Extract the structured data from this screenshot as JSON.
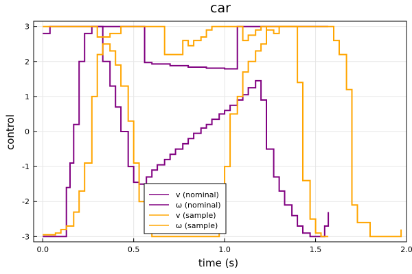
{
  "chart_data": {
    "type": "line",
    "title": "car",
    "xlabel": "time (s)",
    "ylabel": "control",
    "xlim": [
      -0.05,
      2.0
    ],
    "ylim": [
      -3.15,
      3.15
    ],
    "xticks": [
      0.0,
      0.5,
      1.0,
      1.5,
      2.0
    ],
    "xtick_labels": [
      "0.0",
      "0.5",
      "1.0",
      "1.5",
      "2.0"
    ],
    "yticks": [
      -3,
      -2,
      -1,
      0,
      1,
      2,
      3
    ],
    "ytick_labels": [
      "-3",
      "-2",
      "-1",
      "0",
      "1",
      "2",
      "3"
    ],
    "grid": true,
    "legend_position": "bottom-center",
    "series": [
      {
        "name": "v (nominal)",
        "color": "#800080",
        "step": true,
        "x": [
          0.0,
          0.04,
          0.13,
          0.17,
          0.2,
          0.23,
          0.27,
          0.3,
          0.37,
          0.4,
          0.56,
          0.6,
          0.7,
          0.8,
          0.9,
          1.0,
          1.07,
          1.1,
          1.3,
          1.57
        ],
        "y": [
          2.8,
          3.0,
          3.0,
          3.0,
          3.0,
          3.0,
          3.0,
          3.0,
          3.0,
          3.0,
          1.97,
          1.93,
          1.88,
          1.84,
          1.81,
          1.79,
          3.0,
          3.0,
          3.0,
          3.0
        ]
      },
      {
        "name": "ω (nominal)",
        "color": "#800080",
        "step": true,
        "x": [
          0.0,
          0.13,
          0.15,
          0.17,
          0.2,
          0.23,
          0.27,
          0.3,
          0.33,
          0.37,
          0.4,
          0.43,
          0.47,
          0.5,
          0.53,
          0.57,
          0.6,
          0.63,
          0.67,
          0.7,
          0.73,
          0.77,
          0.8,
          0.83,
          0.87,
          0.9,
          0.93,
          0.97,
          1.0,
          1.03,
          1.07,
          1.1,
          1.13,
          1.17,
          1.2,
          1.23,
          1.27,
          1.3,
          1.33,
          1.37,
          1.4,
          1.43,
          1.47,
          1.5,
          1.53,
          1.55,
          1.57
        ],
        "y": [
          -3.0,
          -1.6,
          -0.9,
          0.2,
          2.0,
          2.8,
          3.0,
          3.0,
          2.0,
          1.3,
          0.7,
          0.0,
          -1.0,
          -1.45,
          -1.5,
          -1.3,
          -1.1,
          -0.95,
          -0.8,
          -0.65,
          -0.5,
          -0.35,
          -0.2,
          -0.05,
          0.1,
          0.2,
          0.35,
          0.5,
          0.6,
          0.75,
          0.9,
          1.05,
          1.25,
          1.45,
          0.9,
          -0.5,
          -1.3,
          -1.7,
          -2.1,
          -2.4,
          -2.7,
          -2.9,
          -3.0,
          -3.0,
          -3.0,
          -2.7,
          -2.3
        ]
      },
      {
        "name": "v (sample)",
        "color": "#FFA500",
        "step": true,
        "x": [
          0.0,
          0.13,
          0.17,
          0.2,
          0.23,
          0.3,
          0.37,
          0.43,
          0.5,
          0.57,
          0.63,
          0.67,
          0.77,
          0.8,
          0.83,
          0.87,
          0.9,
          0.93,
          1.0,
          1.07,
          1.1,
          1.13,
          1.17,
          1.2,
          1.23,
          1.27,
          1.3,
          1.33,
          1.37,
          1.4,
          1.43,
          1.47,
          1.5,
          1.55,
          1.6,
          1.63,
          1.67,
          1.7,
          1.73,
          1.8,
          1.97
        ],
        "y": [
          3.0,
          3.0,
          3.0,
          3.0,
          3.0,
          2.7,
          2.8,
          3.0,
          3.0,
          3.0,
          3.0,
          2.2,
          2.6,
          2.45,
          2.6,
          2.7,
          2.9,
          3.0,
          3.0,
          3.0,
          2.6,
          2.75,
          2.9,
          3.0,
          2.9,
          2.8,
          3.0,
          3.0,
          3.0,
          3.0,
          3.0,
          3.0,
          3.0,
          3.0,
          2.6,
          2.2,
          1.2,
          -2.1,
          -2.6,
          -3.0,
          -2.8
        ]
      },
      {
        "name": "ω (sample)",
        "color": "#FFA500",
        "step": true,
        "x": [
          0.0,
          0.07,
          0.1,
          0.13,
          0.17,
          0.2,
          0.23,
          0.27,
          0.3,
          0.33,
          0.37,
          0.4,
          0.43,
          0.47,
          0.5,
          0.53,
          0.57,
          0.6,
          0.63,
          0.67,
          0.7,
          0.73,
          0.77,
          0.8,
          0.83,
          0.87,
          0.9,
          0.93,
          0.97,
          1.0,
          1.03,
          1.07,
          1.1,
          1.13,
          1.17,
          1.2,
          1.23,
          1.27,
          1.3,
          1.33,
          1.37,
          1.4,
          1.43,
          1.47,
          1.5,
          1.53,
          1.57
        ],
        "y": [
          -2.95,
          -2.9,
          -2.8,
          -2.7,
          -2.3,
          -1.7,
          -0.9,
          1.0,
          2.2,
          2.5,
          2.3,
          1.9,
          1.3,
          0.3,
          -0.9,
          -2.0,
          -2.75,
          -3.0,
          -3.0,
          -3.0,
          -3.0,
          -3.0,
          -3.0,
          -3.0,
          -3.0,
          -3.0,
          -3.0,
          -3.0,
          -2.3,
          -1.0,
          0.5,
          1.0,
          1.7,
          2.0,
          2.3,
          2.5,
          3.0,
          3.0,
          3.0,
          3.0,
          3.0,
          1.4,
          -1.4,
          -2.5,
          -2.9,
          -3.0,
          -3.0
        ]
      }
    ]
  }
}
